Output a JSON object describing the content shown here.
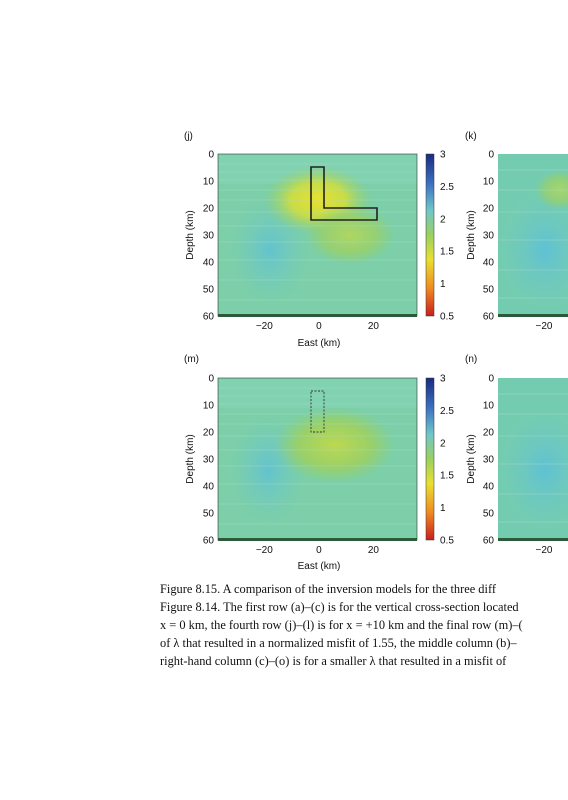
{
  "panels": [
    {
      "label": "(j)",
      "xlabel": "East (km)",
      "ylabel": "Depth (km)",
      "xticks": [
        "−20",
        "0",
        "20"
      ],
      "yticks": [
        "0",
        "10",
        "20",
        "30",
        "40",
        "50",
        "60"
      ],
      "colorbar_ticks": [
        "3",
        "2.5",
        "2",
        "1.5",
        "1",
        "0.5"
      ]
    },
    {
      "label": "(k)",
      "xlabel": "",
      "ylabel": "Depth (km)",
      "xticks": [
        "−20"
      ],
      "yticks": [
        "0",
        "10",
        "20",
        "30",
        "40",
        "50",
        "60"
      ],
      "colorbar_ticks": []
    },
    {
      "label": "(m)",
      "xlabel": "East (km)",
      "ylabel": "Depth (km)",
      "xticks": [
        "−20",
        "0",
        "20"
      ],
      "yticks": [
        "0",
        "10",
        "20",
        "30",
        "40",
        "50",
        "60"
      ],
      "colorbar_ticks": [
        "3",
        "2.5",
        "2",
        "1.5",
        "1",
        "0.5"
      ]
    },
    {
      "label": "(n)",
      "xlabel": "",
      "ylabel": "Depth (km)",
      "xticks": [
        "−20"
      ],
      "yticks": [
        "0",
        "10",
        "20",
        "30",
        "40",
        "50",
        "60"
      ],
      "colorbar_ticks": []
    }
  ],
  "caption_lines": [
    "Figure 8.15.  A comparison of the inversion models for the three diff",
    "Figure 8.14. The first row (a)–(c) is for the vertical cross-section located",
    "x = 0 km, the fourth row (j)–(l) is for x = +10 km and the final row (m)–(",
    "of λ that resulted in a normalized misfit of 1.55, the middle column (b)–",
    "right-hand column (c)–(o) is for a smaller λ that resulted in a misfit of"
  ],
  "chart_data": [
    {
      "type": "heatmap",
      "panel": "(j)",
      "xlim": [
        -37,
        36
      ],
      "ylim": [
        60,
        0
      ],
      "colorbar": {
        "range": [
          0.5,
          3
        ],
        "colors": [
          "#c81e1e",
          "#f0a020",
          "#e8e030",
          "#8fd060",
          "#6fc8c8",
          "#3060b0",
          "#1a2a80"
        ]
      },
      "overlay": "L-shaped outline"
    },
    {
      "type": "heatmap",
      "panel": "(k)",
      "ylim": [
        60,
        0
      ]
    },
    {
      "type": "heatmap",
      "panel": "(m)",
      "xlim": [
        -37,
        36
      ],
      "ylim": [
        60,
        0
      ],
      "colorbar": {
        "range": [
          0.5,
          3
        ],
        "colors": [
          "#c81e1e",
          "#f0a020",
          "#e8e030",
          "#8fd060",
          "#6fc8c8",
          "#3060b0",
          "#1a2a80"
        ]
      },
      "overlay": "L-shaped outline"
    },
    {
      "type": "heatmap",
      "panel": "(n)",
      "ylim": [
        60,
        0
      ]
    }
  ]
}
